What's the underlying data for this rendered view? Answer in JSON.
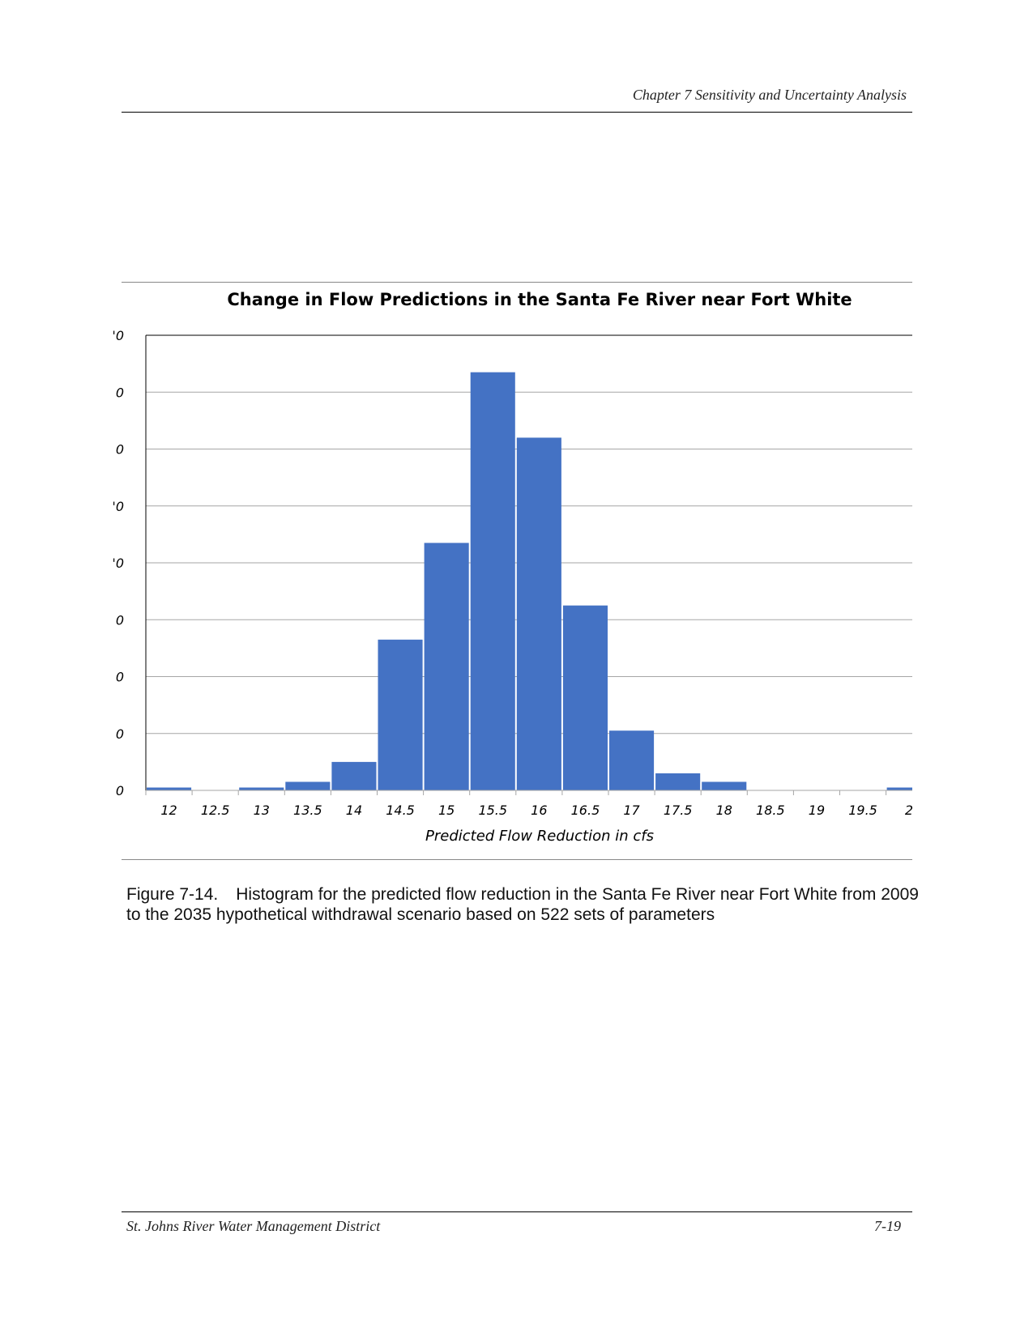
{
  "page": {
    "header": "Chapter 7  Sensitivity and Uncertainty Analysis",
    "footer_left": "St. Johns River Water Management District",
    "footer_right": "7-19",
    "caption_label": "Figure 7-14.",
    "caption_text": "Histogram for the predicted flow reduction in the Santa Fe River near Fort White from 2009 to the 2035 hypothetical withdrawal scenario based on 522 sets of parameters"
  },
  "colors": {
    "bar": "#4472C4",
    "grid": "#a6a6a6",
    "axis": "#000000"
  },
  "chart_data": {
    "type": "bar",
    "title": "Change in Flow Predictions in the Santa Fe River near Fort White",
    "xlabel": "Predicted Flow Reduction in cfs",
    "ylabel": "",
    "categories": [
      "12",
      "12.5",
      "13",
      "13.5",
      "14",
      "14.5",
      "15",
      "15.5",
      "16",
      "16.5",
      "17",
      "17.5",
      "18",
      "18.5",
      "19",
      "19.5",
      "2"
    ],
    "values": [
      1,
      0,
      1,
      3,
      10,
      53,
      87,
      147,
      124,
      65,
      21,
      6,
      3,
      0,
      0,
      0,
      1
    ],
    "y_tick_labels": [
      "0",
      "0",
      "0",
      "0",
      "'0",
      "'0",
      "0",
      "0",
      "'0"
    ],
    "ylim": [
      0,
      160
    ],
    "y_tick_step": 20,
    "grid": true,
    "legend": "none"
  }
}
